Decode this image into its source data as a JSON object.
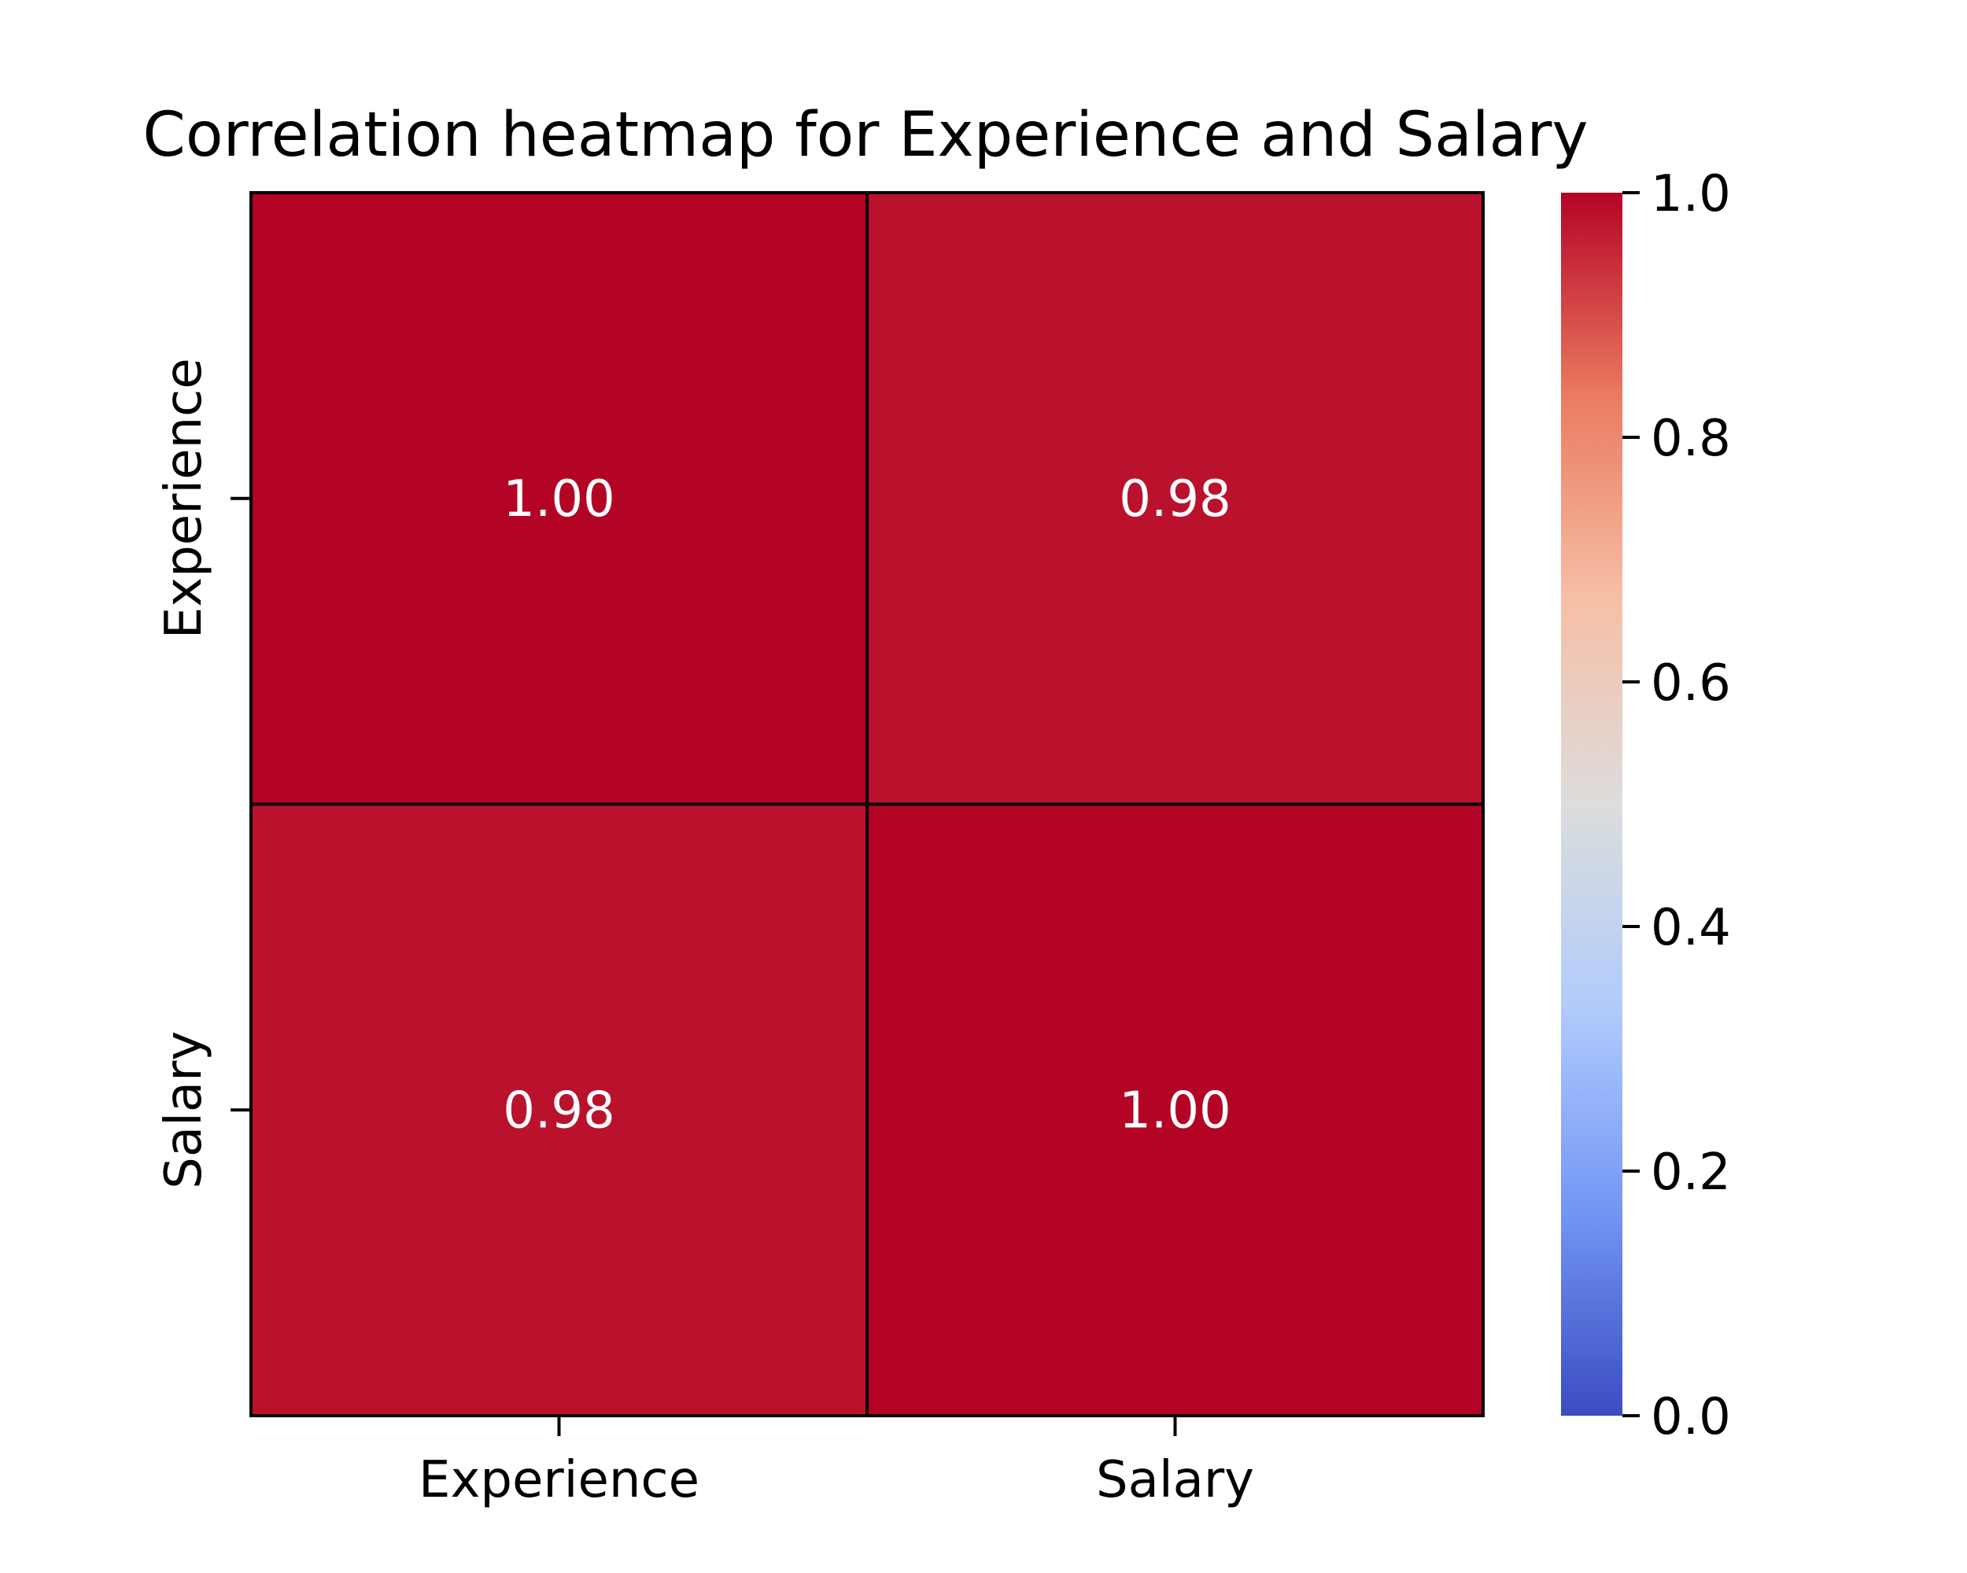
{
  "chart_data": {
    "type": "heatmap",
    "title": "Correlation heatmap for Experience and Salary",
    "xlabel": "",
    "ylabel": "",
    "x_categories": [
      "Experience",
      "Salary"
    ],
    "y_categories": [
      "Experience",
      "Salary"
    ],
    "values": [
      [
        1.0,
        0.98
      ],
      [
        0.98,
        1.0
      ]
    ],
    "cell_labels": [
      [
        "1.00",
        "0.98"
      ],
      [
        "0.98",
        "1.00"
      ]
    ],
    "colormap": "coolwarm",
    "colorbar": {
      "range": [
        0.0,
        1.0
      ],
      "ticks": [
        0.0,
        0.2,
        0.4,
        0.6,
        0.8,
        1.0
      ],
      "tick_labels": [
        "0.0",
        "0.2",
        "0.4",
        "0.6",
        "0.8",
        "1.0"
      ]
    },
    "grid": true,
    "legend": "colorbar-right"
  },
  "colors": {
    "cell_border": "#000000",
    "cell_text": "#ffffff",
    "colormap_stops": [
      "#3b4cc0",
      "#7396f5",
      "#b0cbfc",
      "#dcdddd",
      "#f6bfa6",
      "#ea7b60",
      "#b40426"
    ]
  }
}
